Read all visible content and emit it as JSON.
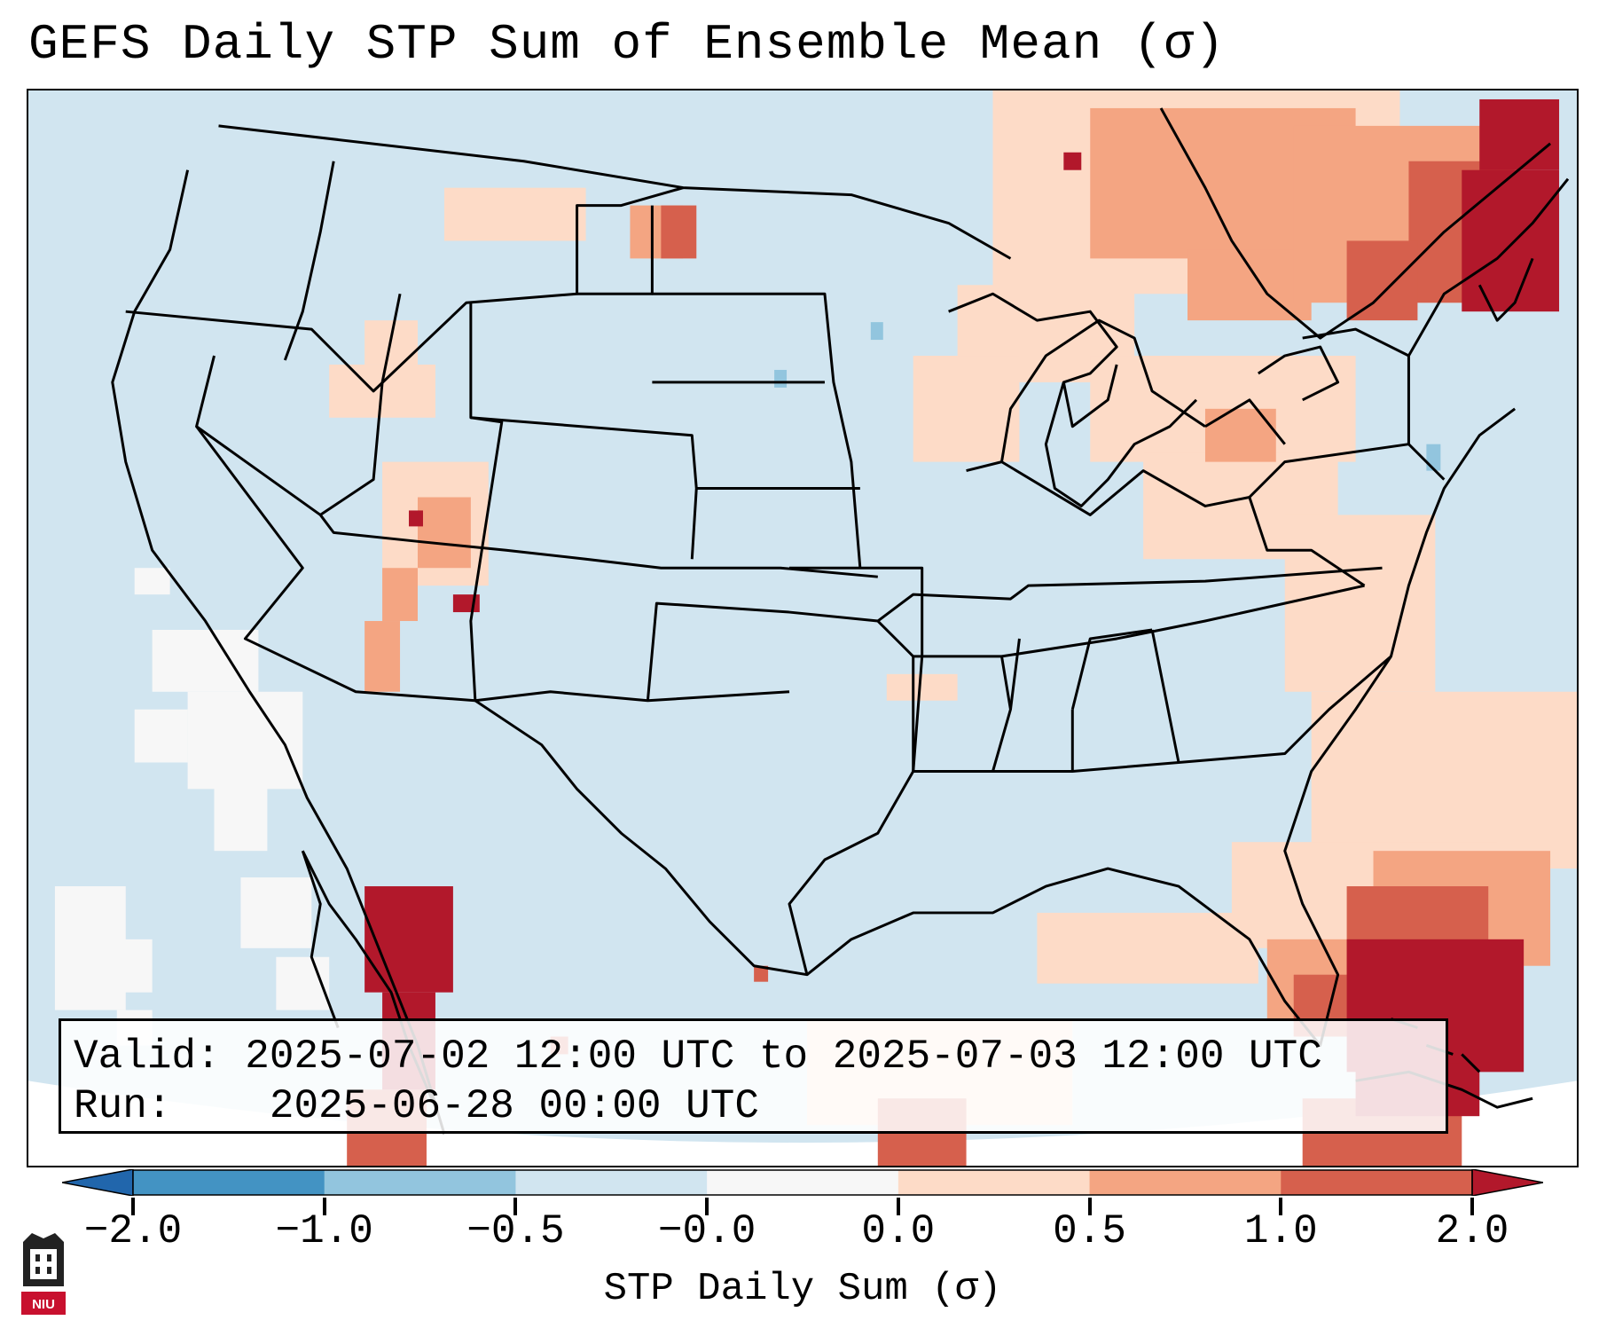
{
  "title": "GEFS Daily STP Sum of Ensemble Mean (σ)",
  "info": {
    "valid_label": "Valid:",
    "valid_value": "2025-07-02 12:00 UTC to 2025-07-03 12:00 UTC",
    "run_label": "Run:",
    "run_value": "2025-06-28 00:00 UTC"
  },
  "colorbar": {
    "title": "STP Daily Sum (σ)",
    "ticks": [
      "−2.0",
      "−1.0",
      "−0.5",
      "−0.0",
      "0.0",
      "0.5",
      "1.0",
      "2.0"
    ],
    "colors": [
      "#2166ac",
      "#4393c3",
      "#92c5de",
      "#d1e5f0",
      "#f7f7f7",
      "#fddbc7",
      "#f4a582",
      "#d6604d",
      "#b2182b"
    ],
    "segment_colors": [
      "#4393c3",
      "#92c5de",
      "#d1e5f0",
      "#f7f7f7",
      "#fddbc7",
      "#f4a582",
      "#d6604d"
    ]
  },
  "map": {
    "projection": "Lambert Conformal (CONUS)",
    "ocean_color": "#d1e5f0",
    "land_color": "#d1e5f0",
    "background_color": "#ffffff",
    "border_color": "#000000"
  },
  "logo": {
    "text": "NIU",
    "colors": {
      "primary": "#c8102e",
      "secondary": "#222222"
    }
  }
}
